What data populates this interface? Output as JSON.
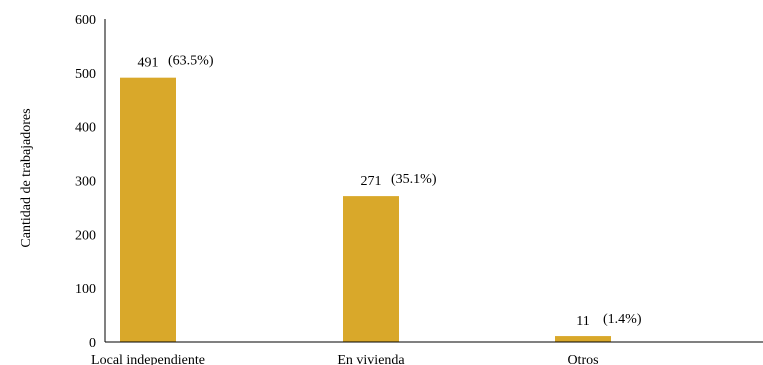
{
  "chart_data": {
    "type": "bar",
    "categories": [
      "Local independiente",
      "En vivienda",
      "Otros"
    ],
    "values": [
      491,
      271,
      11
    ],
    "value_labels": [
      "491",
      "271",
      "11"
    ],
    "percent_labels": [
      "(63.5%)",
      "(35.1%)",
      "(1.4%)"
    ],
    "ylabel": "Cantidad de trabajadores",
    "xlabel": "",
    "ylim": [
      0,
      600
    ],
    "yticks": [
      0,
      100,
      200,
      300,
      400,
      500,
      600
    ],
    "grid": false,
    "legend": "none",
    "bar_color": "#D9A82A",
    "axis_color": "#000000"
  }
}
